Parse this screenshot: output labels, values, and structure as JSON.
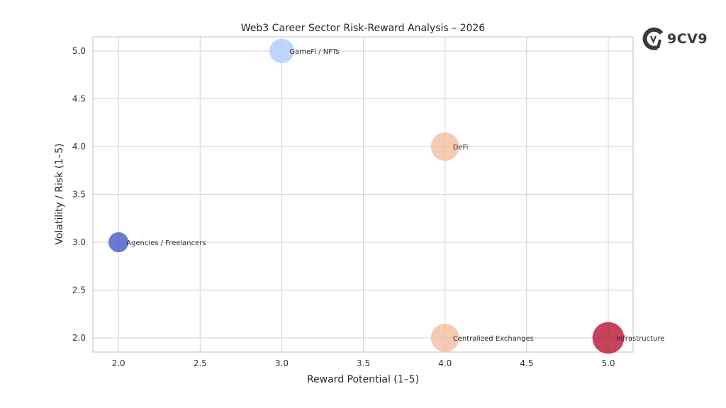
{
  "chart_data": {
    "type": "scatter",
    "title": "Web3 Career Sector Risk-Reward Analysis – 2026",
    "xlabel": "Reward Potential (1–5)",
    "ylabel": "Volatility / Risk (1–5)",
    "xlim": [
      1.843,
      5.152
    ],
    "ylim": [
      1.852,
      5.148
    ],
    "xticks": [
      "2.0",
      "2.5",
      "3.0",
      "3.5",
      "4.0",
      "4.5",
      "5.0"
    ],
    "yticks": [
      "2.0",
      "2.5",
      "3.0",
      "3.5",
      "4.0",
      "4.5",
      "5.0"
    ],
    "grid": true,
    "points": [
      {
        "label": "GameFi / NFTs",
        "x": 3,
        "y": 5,
        "size": 3,
        "color": "#aac7fd"
      },
      {
        "label": "DeFi",
        "x": 4,
        "y": 4,
        "size": 4,
        "color": "#f4b89a"
      },
      {
        "label": "Agencies / Freelancers",
        "x": 2,
        "y": 3,
        "size": 2,
        "color": "#3b4cc0"
      },
      {
        "label": "Centralized Exchanges",
        "x": 4,
        "y": 2,
        "size": 4,
        "color": "#f4b89a"
      },
      {
        "label": "Infrastructure",
        "x": 5,
        "y": 2,
        "size": 5,
        "color": "#b40426"
      }
    ]
  },
  "logo": {
    "text": "9CV9"
  }
}
